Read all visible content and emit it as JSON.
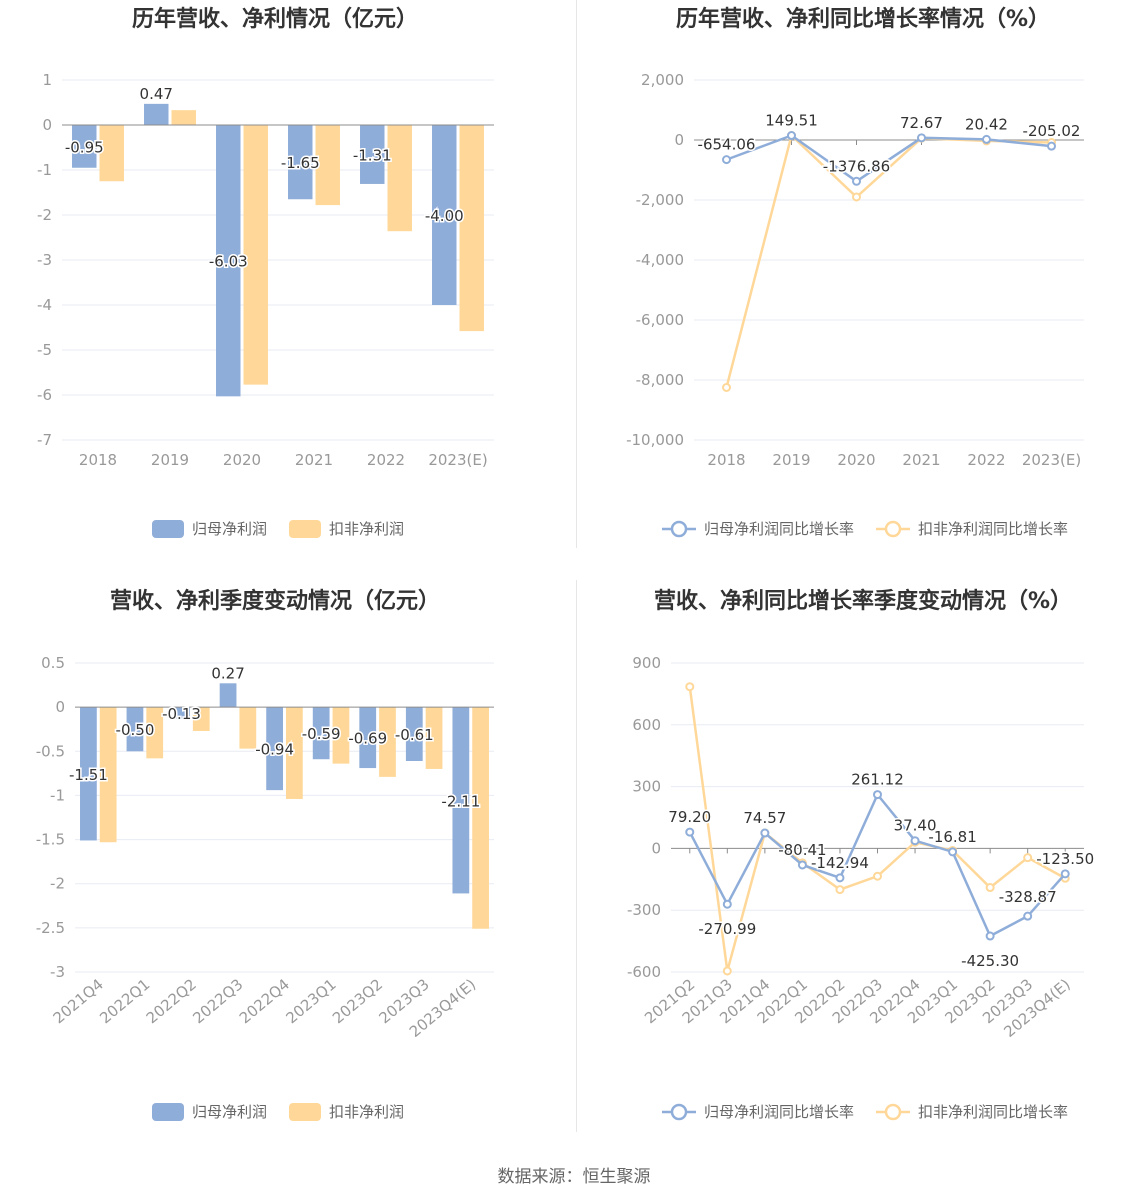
{
  "source_text": "数据来源：恒生聚源",
  "colors": {
    "series_a": "#8fadd9",
    "series_b": "#ffd899",
    "axis": "#8c8c8c",
    "grid": "#e8ebf3"
  },
  "chart_data": [
    {
      "type": "bar",
      "title": "历年营收、净利情况（亿元）",
      "categories": [
        "2018",
        "2019",
        "2020",
        "2021",
        "2022",
        "2023(E)"
      ],
      "ylim": [
        -7,
        1
      ],
      "yticks": [
        1,
        0,
        -1,
        -2,
        -3,
        -4,
        -5,
        -6,
        -7
      ],
      "ytick_labels": [
        "1",
        "0",
        "-1",
        "-2",
        "-3",
        "-4",
        "-5",
        "-6",
        "-7"
      ],
      "grid": true,
      "legend_position": "bottom",
      "series": [
        {
          "name": "归母净利润",
          "values": [
            -0.95,
            0.47,
            -6.03,
            -1.65,
            -1.31,
            -4.0
          ],
          "labels": [
            "-0.95",
            "0.47",
            "-6.03",
            "-1.65",
            "-1.31",
            "-4.00"
          ]
        },
        {
          "name": "扣非净利润",
          "values": [
            -1.25,
            0.33,
            -5.77,
            -1.78,
            -2.36,
            -4.58
          ]
        }
      ]
    },
    {
      "type": "line",
      "title": "历年营收、净利同比增长率情况（%）",
      "categories": [
        "2018",
        "2019",
        "2020",
        "2021",
        "2022",
        "2023(E)"
      ],
      "ylim": [
        -10000,
        2000
      ],
      "yticks": [
        2000,
        0,
        -2000,
        -4000,
        -6000,
        -8000,
        -10000
      ],
      "ytick_labels": [
        "2,000",
        "0",
        "-2,000",
        "-4,000",
        "-6,000",
        "-8,000",
        "-10,000"
      ],
      "grid": true,
      "legend_position": "bottom",
      "series": [
        {
          "name": "归母净利润同比增长率",
          "values": [
            -654.06,
            149.51,
            -1376.86,
            72.67,
            20.42,
            -205.02
          ],
          "labels": [
            "-654.06",
            "149.51",
            "-1376.86",
            "72.67",
            "20.42",
            "-205.02"
          ]
        },
        {
          "name": "扣非净利润同比增长率",
          "values": [
            -8250,
            150,
            -1900,
            60,
            -30,
            -85
          ]
        }
      ]
    },
    {
      "type": "bar",
      "title": "营收、净利季度变动情况（亿元）",
      "categories": [
        "2021Q4",
        "2022Q1",
        "2022Q2",
        "2022Q3",
        "2022Q4",
        "2023Q1",
        "2023Q2",
        "2023Q3",
        "2023Q4(E)"
      ],
      "ylim": [
        -3,
        0.5
      ],
      "yticks": [
        0.5,
        0,
        -0.5,
        -1,
        -1.5,
        -2,
        -2.5,
        -3
      ],
      "ytick_labels": [
        "0.5",
        "0",
        "-0.5",
        "-1",
        "-1.5",
        "-2",
        "-2.5",
        "-3"
      ],
      "grid": true,
      "legend_position": "bottom",
      "series": [
        {
          "name": "归母净利润",
          "values": [
            -1.51,
            -0.5,
            -0.13,
            0.27,
            -0.94,
            -0.59,
            -0.69,
            -0.61,
            -2.11
          ],
          "labels": [
            "-1.51",
            "-0.50",
            "-0.13",
            "0.27",
            "-0.94",
            "-0.59",
            "-0.69",
            "-0.61",
            "-2.11"
          ]
        },
        {
          "name": "扣非净利润",
          "values": [
            -1.53,
            -0.58,
            -0.27,
            -0.47,
            -1.04,
            -0.64,
            -0.79,
            -0.7,
            -2.51
          ]
        }
      ]
    },
    {
      "type": "line",
      "title": "营收、净利同比增长率季度变动情况（%）",
      "categories": [
        "2021Q2",
        "2021Q3",
        "2021Q4",
        "2022Q1",
        "2022Q2",
        "2022Q3",
        "2022Q4",
        "2023Q1",
        "2023Q2",
        "2023Q3",
        "2023Q4(E)"
      ],
      "ylim": [
        -600,
        900
      ],
      "yticks": [
        900,
        600,
        300,
        0,
        -300,
        -600
      ],
      "ytick_labels": [
        "900",
        "600",
        "300",
        "0",
        "-300",
        "-600"
      ],
      "grid": true,
      "legend_position": "bottom",
      "series": [
        {
          "name": "归母净利润同比增长率",
          "values": [
            79.2,
            -270.99,
            74.57,
            -80.41,
            -142.94,
            261.12,
            37.4,
            -16.81,
            -425.3,
            -328.87,
            -123.5
          ],
          "labels": [
            "79.20",
            "-270.99",
            "74.57",
            "-80.41",
            "-142.94",
            "261.12",
            "37.40",
            "-16.81",
            "-425.30",
            "-328.87",
            "-123.50"
          ]
        },
        {
          "name": "扣非净利润同比增长率",
          "values": [
            785,
            -595,
            75,
            -70,
            -200,
            -135,
            30,
            -10,
            -190,
            -45,
            -145
          ]
        }
      ]
    }
  ]
}
